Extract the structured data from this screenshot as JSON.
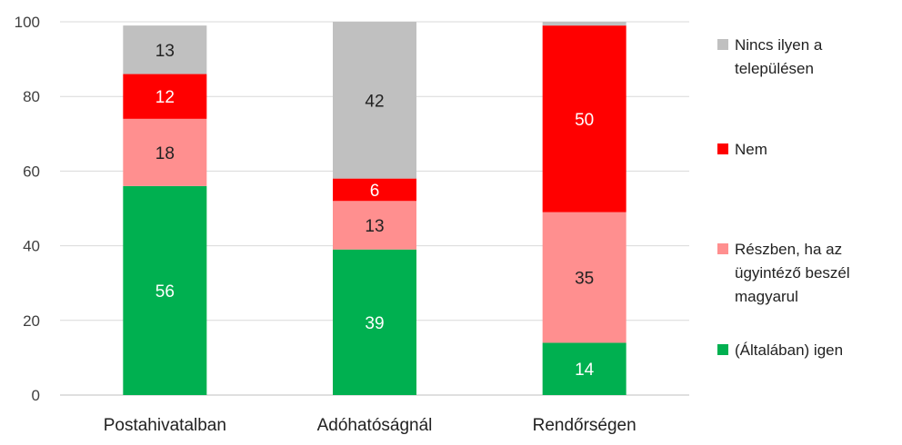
{
  "chart_data": {
    "type": "stacked-bar",
    "categories": [
      "Postahivatalban",
      "Adóhatóságnál",
      "Rendőrségen"
    ],
    "series": [
      {
        "name": "(Általában) igen",
        "values": [
          56,
          39,
          14
        ],
        "color": "#00b050",
        "label_color": "#ffffff",
        "labels": [
          "56",
          "39",
          "14"
        ]
      },
      {
        "name": "Részben, ha az ügyintéző beszél magyarul",
        "values": [
          18,
          13,
          35
        ],
        "color": "#ff8f8f",
        "label_color": "#222222",
        "labels": [
          "18",
          "13",
          "35"
        ]
      },
      {
        "name": "Nem",
        "values": [
          12,
          6,
          50
        ],
        "color": "#ff0000",
        "label_color": "#ffffff",
        "labels": [
          "12",
          "6",
          "50"
        ]
      },
      {
        "name": "Nincs ilyen a településen",
        "values": [
          13,
          42,
          1
        ],
        "color": "#c0c0c0",
        "label_color": "#222222",
        "labels": [
          "13",
          "42",
          ""
        ]
      }
    ],
    "ylim": [
      0,
      100
    ],
    "yticks": [
      "0",
      "20",
      "40",
      "60",
      "80",
      "100"
    ],
    "ytick_values": [
      0,
      20,
      40,
      60,
      80,
      100
    ],
    "grid": true,
    "legend_position": "right",
    "legend": [
      {
        "lines": [
          "Nincs ilyen a",
          "településen"
        ],
        "color": "#c0c0c0"
      },
      {
        "lines": [
          "Nem"
        ],
        "color": "#ff0000"
      },
      {
        "lines": [
          "Részben, ha az",
          "ügyintéző beszél",
          "magyarul"
        ],
        "color": "#ff8f8f"
      },
      {
        "lines": [
          "(Általában) igen"
        ],
        "color": "#00b050"
      }
    ]
  }
}
